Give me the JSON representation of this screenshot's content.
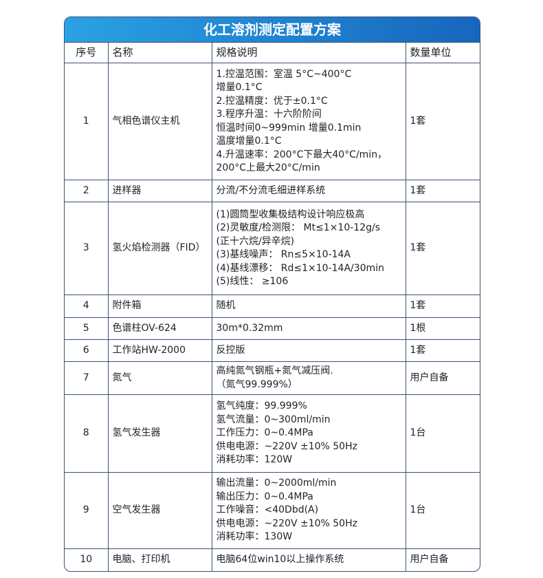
{
  "title": "化工溶剂测定配置方案",
  "headers": [
    "序号",
    "名称",
    "规格说明",
    "数量单位"
  ],
  "rows": [
    {
      "no": "1",
      "name": "气相色谱仪主机",
      "spec": "1.控温范围：室温 5°C~400°C\n增量0.1°C\n2.控温精度：优于±0.1°C\n3.程序升温：十六阶阶间\n恒温时间0~999min 增量0.1min\n温度增量0.1°C\n4.升温速率：200°C下最大40°C/min，\n200°C上最大20°C/min",
      "qty": "1套"
    },
    {
      "no": "2",
      "name": "进样器",
      "spec": "分流/不分流毛细进样系统",
      "qty": "1套"
    },
    {
      "no": "3",
      "name": "氢火焰检测器（FID）",
      "spec": "(1)圆筒型收集极结构设计响应极高\n(2)灵敏度/检测限： Mt≤1×10-12g/s\n(正十六烷/异辛烷)\n(3)基线噪声： Rn≤5×10-14A\n(4)基线漂移： Rd≤1×10-14A/30min\n(5)线性： ≥106",
      "qty": "1套"
    },
    {
      "no": "4",
      "name": "附件箱",
      "spec": "随机",
      "qty": "1套"
    },
    {
      "no": "5",
      "name": "色谱柱OV-624",
      "spec": "30m*0.32mm",
      "qty": "1根"
    },
    {
      "no": "6",
      "name": "工作站HW-2000",
      "spec": "反控版",
      "qty": "1套"
    },
    {
      "no": "7",
      "name": "氮气",
      "spec": "高纯氮气钢瓶+氮气减压阀.\n（氮气99.999%）",
      "qty": "用户自备"
    },
    {
      "no": "8",
      "name": "氢气发生器",
      "spec": "氢气纯度：99.999%\n氢气流量：0~300ml/min\n工作压力：0~0.4MPa\n供电电源：~220V ±10% 50Hz\n消耗功率：120W",
      "qty": "1台"
    },
    {
      "no": "9",
      "name": "空气发生器",
      "spec": "输出流量：0~2000ml/min\n输出压力：0~0.4MPa\n工作噪音：<40Dbd(A)\n供电电源：~220V ±10% 50Hz\n消耗功率：130W",
      "qty": "1台"
    },
    {
      "no": "10",
      "name": "电脑、打印机",
      "spec": "电脑64位win10以上操作系统",
      "qty": "用户自备"
    }
  ]
}
